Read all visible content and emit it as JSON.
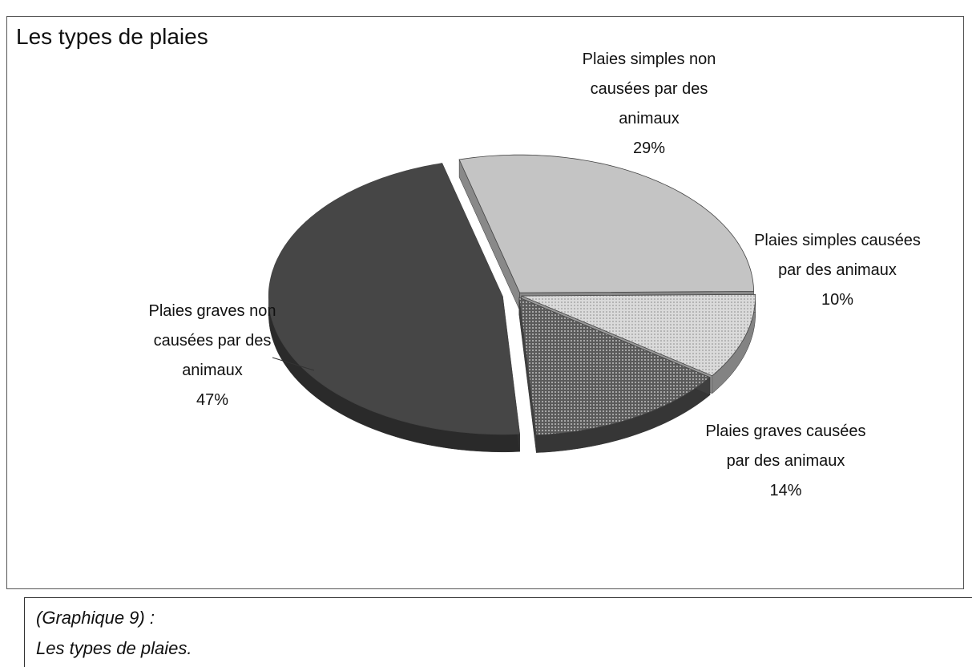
{
  "chart_data": {
    "type": "pie",
    "title": "Les types de plaies",
    "categories": [
      "Plaies simples non causées par des animaux",
      "Plaies simples causées par des animaux",
      "Plaies graves causées par des animaux",
      "Plaies graves non causées par des animaux"
    ],
    "values": [
      29,
      10,
      14,
      47
    ],
    "value_labels": [
      "29%",
      "10%",
      "14%",
      "47%"
    ],
    "colors": [
      "#c4c4c4",
      "#dadada",
      "#5a5a5a",
      "#464646"
    ]
  },
  "caption": [
    "(Graphique 9) :",
    "Les types de plaies."
  ]
}
